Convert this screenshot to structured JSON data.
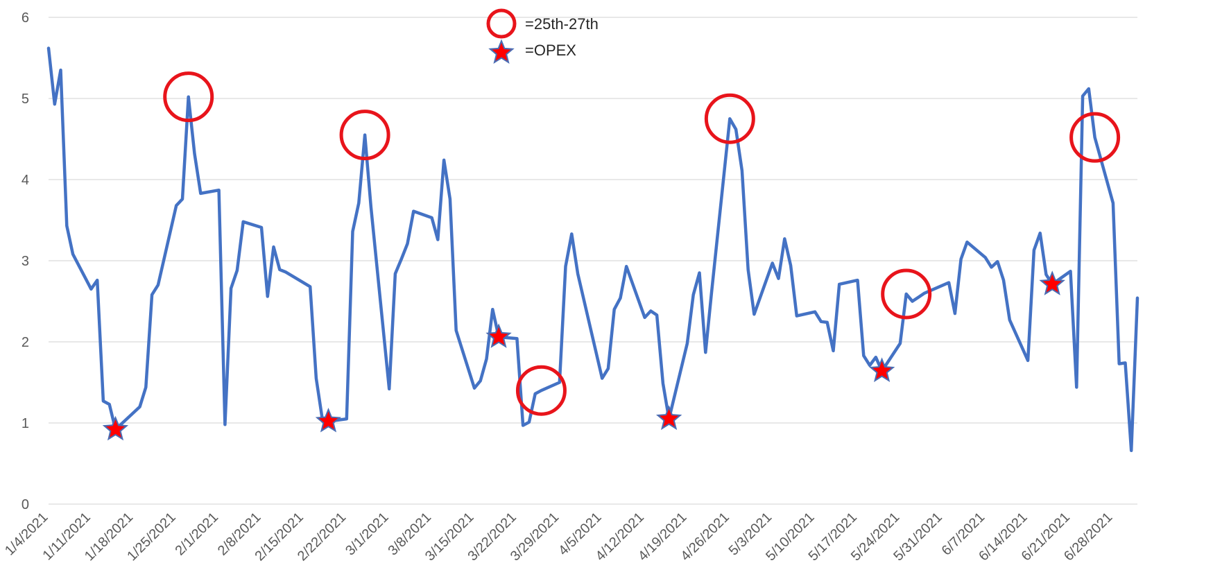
{
  "chart_data": {
    "type": "line",
    "title": "",
    "xlabel": "",
    "ylabel": "",
    "ylim": [
      0,
      6
    ],
    "y_ticks": [
      0,
      1,
      2,
      3,
      4,
      5,
      6
    ],
    "xlim": [
      "2021-01-04",
      "2021-07-02"
    ],
    "x_tick_labels": [
      "1/4/2021",
      "1/11/2021",
      "1/18/2021",
      "1/25/2021",
      "2/1/2021",
      "2/8/2021",
      "2/15/2021",
      "2/22/2021",
      "3/1/2021",
      "3/8/2021",
      "3/15/2021",
      "3/22/2021",
      "3/29/2021",
      "4/5/2021",
      "4/12/2021",
      "4/19/2021",
      "4/26/2021",
      "5/3/2021",
      "5/10/2021",
      "5/17/2021",
      "5/24/2021",
      "5/31/2021",
      "6/7/2021",
      "6/14/2021",
      "6/21/2021",
      "6/28/2021"
    ],
    "grid": "horizontal",
    "line_color": "#4472C4",
    "series": [
      {
        "x": [
          "2021-01-04",
          "2021-01-05",
          "2021-01-06",
          "2021-01-07",
          "2021-01-08",
          "2021-01-11",
          "2021-01-12",
          "2021-01-13",
          "2021-01-14",
          "2021-01-15",
          "2021-01-19",
          "2021-01-20",
          "2021-01-21",
          "2021-01-22",
          "2021-01-25",
          "2021-01-26",
          "2021-01-27",
          "2021-01-28",
          "2021-01-29",
          "2021-02-01",
          "2021-02-02",
          "2021-02-03",
          "2021-02-04",
          "2021-02-05",
          "2021-02-08",
          "2021-02-09",
          "2021-02-10",
          "2021-02-11",
          "2021-02-12",
          "2021-02-16",
          "2021-02-17",
          "2021-02-18",
          "2021-02-19",
          "2021-02-22",
          "2021-02-23",
          "2021-02-24",
          "2021-02-25",
          "2021-02-26",
          "2021-03-01",
          "2021-03-02",
          "2021-03-03",
          "2021-03-04",
          "2021-03-05",
          "2021-03-08",
          "2021-03-09",
          "2021-03-10",
          "2021-03-11",
          "2021-03-12",
          "2021-03-15",
          "2021-03-16",
          "2021-03-17",
          "2021-03-18",
          "2021-03-19",
          "2021-03-22",
          "2021-03-23",
          "2021-03-24",
          "2021-03-25",
          "2021-03-26",
          "2021-03-29",
          "2021-03-30",
          "2021-03-31",
          "2021-04-01",
          "2021-04-05",
          "2021-04-06",
          "2021-04-07",
          "2021-04-08",
          "2021-04-09",
          "2021-04-12",
          "2021-04-13",
          "2021-04-14",
          "2021-04-15",
          "2021-04-16",
          "2021-04-19",
          "2021-04-20",
          "2021-04-21",
          "2021-04-22",
          "2021-04-23",
          "2021-04-26",
          "2021-04-27",
          "2021-04-28",
          "2021-04-29",
          "2021-04-30",
          "2021-05-03",
          "2021-05-04",
          "2021-05-05",
          "2021-05-06",
          "2021-05-07",
          "2021-05-10",
          "2021-05-11",
          "2021-05-12",
          "2021-05-13",
          "2021-05-14",
          "2021-05-17",
          "2021-05-18",
          "2021-05-19",
          "2021-05-20",
          "2021-05-21",
          "2021-05-24",
          "2021-05-25",
          "2021-05-26",
          "2021-05-27",
          "2021-05-28",
          "2021-06-01",
          "2021-06-02",
          "2021-06-03",
          "2021-06-04",
          "2021-06-07",
          "2021-06-08",
          "2021-06-09",
          "2021-06-10",
          "2021-06-11",
          "2021-06-14",
          "2021-06-15",
          "2021-06-16",
          "2021-06-17",
          "2021-06-18",
          "2021-06-21",
          "2021-06-22",
          "2021-06-23",
          "2021-06-24",
          "2021-06-25",
          "2021-06-28",
          "2021-06-29",
          "2021-06-30",
          "2021-07-01",
          "2021-07-02"
        ],
        "values": [
          5.62,
          4.93,
          5.35,
          3.43,
          3.08,
          2.65,
          2.76,
          1.27,
          1.23,
          0.92,
          1.2,
          1.44,
          2.58,
          2.7,
          3.68,
          3.76,
          5.02,
          4.32,
          3.83,
          3.87,
          0.98,
          2.66,
          2.88,
          3.48,
          3.41,
          2.56,
          3.17,
          2.89,
          2.86,
          2.68,
          1.55,
          1.05,
          1.02,
          1.05,
          3.36,
          3.71,
          4.55,
          3.66,
          1.42,
          2.84,
          3.02,
          3.21,
          3.61,
          3.53,
          3.26,
          4.24,
          3.76,
          2.14,
          1.43,
          1.52,
          1.79,
          2.4,
          2.06,
          2.04,
          0.97,
          1.01,
          1.36,
          1.4,
          1.5,
          2.93,
          3.33,
          2.84,
          1.55,
          1.67,
          2.4,
          2.54,
          2.93,
          2.3,
          2.38,
          2.33,
          1.49,
          1.05,
          1.98,
          2.58,
          2.85,
          1.87,
          2.61,
          4.75,
          4.62,
          4.11,
          2.89,
          2.34,
          2.97,
          2.78,
          3.27,
          2.94,
          2.32,
          2.37,
          2.25,
          2.24,
          1.89,
          2.71,
          2.76,
          1.83,
          1.71,
          1.81,
          1.64,
          1.98,
          2.59,
          2.5,
          2.55,
          2.6,
          2.73,
          2.35,
          3.02,
          3.23,
          3.04,
          2.92,
          2.99,
          2.76,
          2.27,
          1.77,
          3.13,
          3.34,
          2.83,
          2.71,
          2.87,
          1.44,
          5.03,
          5.12,
          4.52,
          3.71,
          1.73,
          1.74,
          0.66,
          2.54
        ]
      }
    ],
    "circle_markers": [
      "2021-01-27",
      "2021-02-25",
      "2021-03-26",
      "2021-04-26",
      "2021-05-25",
      "2021-06-25"
    ],
    "star_markers": [
      "2021-01-15",
      "2021-02-19",
      "2021-03-19",
      "2021-04-16",
      "2021-05-21",
      "2021-06-18"
    ],
    "legend": [
      {
        "marker": "circle",
        "label": "=25th-27th"
      },
      {
        "marker": "star",
        "label": "=OPEX"
      }
    ],
    "legend_position": "top-center",
    "marker_colors": {
      "circle": "#E8141B",
      "star_fill": "#FF0000",
      "star_stroke": "#4A6CB3"
    }
  }
}
